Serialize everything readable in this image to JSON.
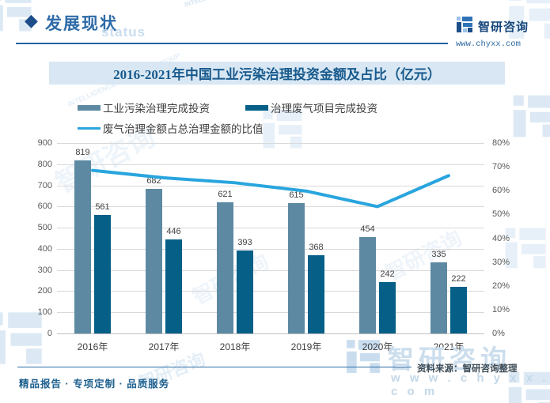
{
  "page": {
    "header": {
      "section_title": "发展现状",
      "status_watermark": "status",
      "logo_text": "智研咨询",
      "logo_url": "www.chyxx.com"
    },
    "chart_title": "2016-2021年中国工业污染治理投资金额及占比（亿元）",
    "footer": {
      "source": "资料来源：智研咨询整理",
      "tagline": "精品报告 · 专项定制 · 品质服务",
      "watermark_brand": "智研咨询",
      "watermark_url": "w w w . c h y x x . c o m"
    },
    "watermark": {
      "brand": "智研咨询",
      "subtext": "INTELLIGENCE RESEARCH GROUP"
    },
    "colors": {
      "bar_series_1": "#5d8aa2",
      "bar_series_2": "#065f87",
      "trend_line": "#29a5de",
      "title_background": "#d8e7f3",
      "title_text": "#185a8d",
      "header_blue": "#2e6ba8",
      "watermark_blue": "#dce9f4"
    }
  },
  "chart_data": {
    "type": "bar",
    "categories": [
      "2016年",
      "2017年",
      "2018年",
      "2019年",
      "2020年",
      "2021年"
    ],
    "series": [
      {
        "name": "工业污染治理完成投资",
        "type": "bar",
        "axis": "left",
        "color": "#5d8aa2",
        "values": [
          819,
          682,
          621,
          615,
          454,
          335
        ]
      },
      {
        "name": "治理废气项目完成投资",
        "type": "bar",
        "axis": "left",
        "color": "#065f87",
        "values": [
          561,
          446,
          393,
          368,
          242,
          222
        ]
      },
      {
        "name": "废气治理金额占总治理金额的比值",
        "type": "line",
        "axis": "right",
        "color": "#29a5de",
        "values": [
          68.5,
          65.4,
          63.3,
          59.8,
          53.3,
          66.3
        ]
      }
    ],
    "title": "2016-2021年中国工业污染治理投资金额及占比（亿元）",
    "xlabel": "",
    "ylabel": "",
    "left_axis": {
      "min": 0,
      "max": 900,
      "step": 100,
      "ticks": [
        "0",
        "100",
        "200",
        "300",
        "400",
        "500",
        "600",
        "700",
        "800",
        "900"
      ]
    },
    "right_axis": {
      "min": 0,
      "max": 80,
      "step": 10,
      "ticks": [
        "0%",
        "10%",
        "20%",
        "30%",
        "40%",
        "50%",
        "60%",
        "70%",
        "80%"
      ]
    },
    "grid": true,
    "data_labels": true,
    "legend_position": "top"
  }
}
